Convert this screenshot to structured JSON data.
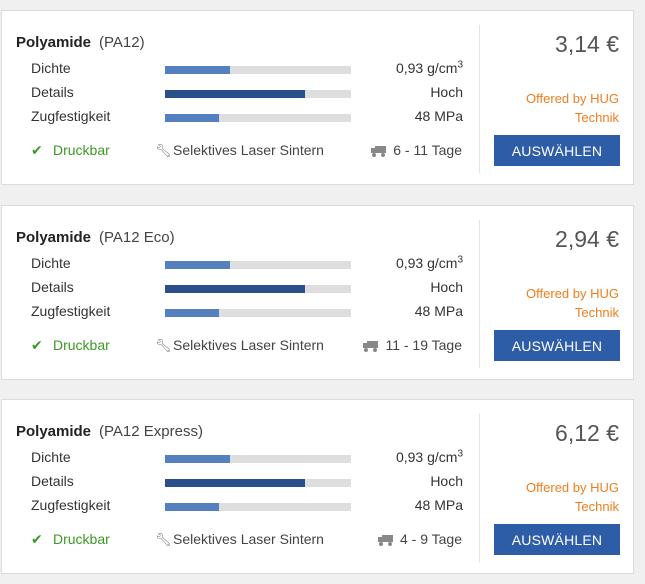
{
  "materials": [
    {
      "name": "Polyamide",
      "variant": "(PA12)",
      "properties": [
        {
          "label": "Dichte",
          "value": "0,93 g/cm",
          "unit_sup": "3",
          "level": 0.35
        },
        {
          "label": "Details",
          "value": "Hoch",
          "level": 0.75
        },
        {
          "label": "Zugfestigkeit",
          "value": "48 MPa",
          "level": 0.29
        }
      ],
      "printable": "Druckbar",
      "process": "Selektives Laser Sintern",
      "delivery": "6 - 11 Tage",
      "price": "3,14 €",
      "offered_by": "Offered by HUG Technik",
      "button_label": "AUSWÄHLEN"
    },
    {
      "name": "Polyamide",
      "variant": "(PA12 Eco)",
      "properties": [
        {
          "label": "Dichte",
          "value": "0,93 g/cm",
          "unit_sup": "3",
          "level": 0.35
        },
        {
          "label": "Details",
          "value": "Hoch",
          "level": 0.75
        },
        {
          "label": "Zugfestigkeit",
          "value": "48 MPa",
          "level": 0.29
        }
      ],
      "printable": "Druckbar",
      "process": "Selektives Laser Sintern",
      "delivery": "11 - 19 Tage",
      "price": "2,94 €",
      "offered_by": "Offered by HUG Technik",
      "button_label": "AUSWÄHLEN"
    },
    {
      "name": "Polyamide",
      "variant": "(PA12 Express)",
      "properties": [
        {
          "label": "Dichte",
          "value": "0,93 g/cm",
          "unit_sup": "3",
          "level": 0.35
        },
        {
          "label": "Details",
          "value": "Hoch",
          "level": 0.75
        },
        {
          "label": "Zugfestigkeit",
          "value": "48 MPa",
          "level": 0.29
        }
      ],
      "printable": "Druckbar",
      "process": "Selektives Laser Sintern",
      "delivery": "4 - 9 Tage",
      "price": "6,12 €",
      "offered_by": "Offered by HUG Technik",
      "button_label": "AUSWÄHLEN"
    }
  ],
  "icons": {
    "printable": "check-icon",
    "process": "wrench-icon",
    "delivery": "truck-icon"
  },
  "colors": {
    "accent_button": "#2e5da8",
    "bar_fill": "#5580c0",
    "bar_fill_details": "#2b4f8a",
    "bar_track": "#dedede",
    "printable_green": "#3a9a25",
    "offer_orange": "#f07d1e"
  }
}
